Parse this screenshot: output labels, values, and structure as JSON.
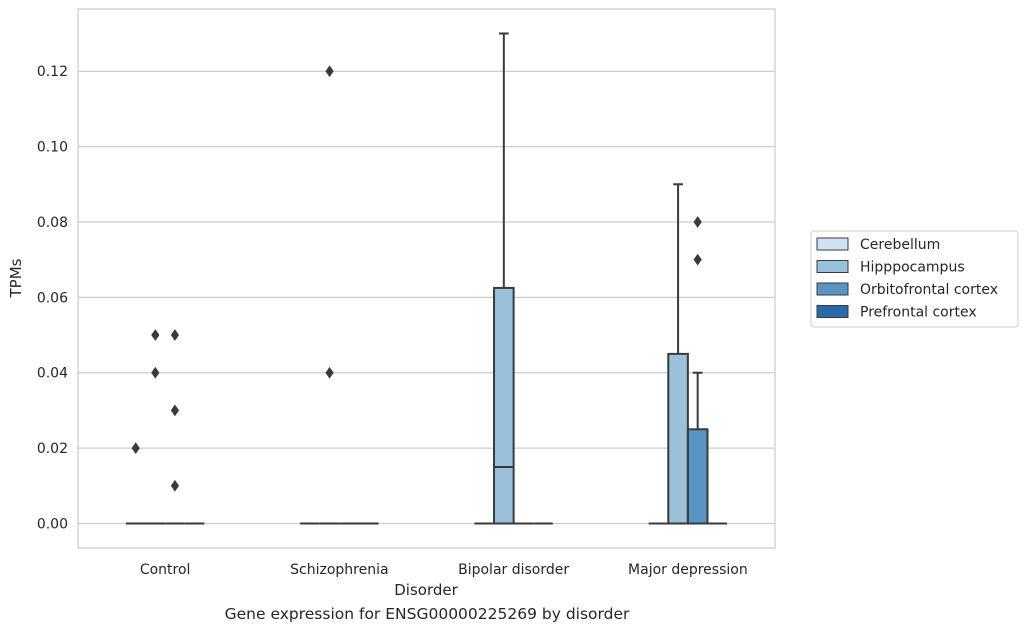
{
  "caption": "Gene expression for ENSG00000225269 by disorder",
  "chart_data": {
    "type": "box",
    "xlabel": "Disorder",
    "ylabel": "TPMs",
    "categories": [
      "Control",
      "Schizophrenia",
      "Bipolar disorder",
      "Major depression"
    ],
    "ylim": [
      -0.0065,
      0.1365
    ],
    "yticks": [
      0.0,
      0.02,
      0.04,
      0.06,
      0.08,
      0.1,
      0.12
    ],
    "ytick_labels": [
      "0.00",
      "0.02",
      "0.04",
      "0.06",
      "0.08",
      "0.10",
      "0.12"
    ],
    "grid": "horizontal",
    "legend_position": "right",
    "series": [
      {
        "name": "Cerebellum",
        "color": "#d0e1f2",
        "boxes": [
          {
            "category": "Control",
            "whislo": 0.0,
            "q1": 0.0,
            "med": 0.0,
            "q3": 0.0,
            "whishi": 0.0,
            "fliers": [
              0.02
            ]
          },
          {
            "category": "Schizophrenia",
            "whislo": 0.0,
            "q1": 0.0,
            "med": 0.0,
            "q3": 0.0,
            "whishi": 0.0,
            "fliers": []
          },
          {
            "category": "Bipolar disorder",
            "whislo": 0.0,
            "q1": 0.0,
            "med": 0.0,
            "q3": 0.0,
            "whishi": 0.0,
            "fliers": []
          },
          {
            "category": "Major depression",
            "whislo": 0.0,
            "q1": 0.0,
            "med": 0.0,
            "q3": 0.0,
            "whishi": 0.0,
            "fliers": []
          }
        ]
      },
      {
        "name": "Hipppocampus",
        "color": "#9ac1d9",
        "boxes": [
          {
            "category": "Control",
            "whislo": 0.0,
            "q1": 0.0,
            "med": 0.0,
            "q3": 0.0,
            "whishi": 0.0,
            "fliers": [
              0.04,
              0.05
            ]
          },
          {
            "category": "Schizophrenia",
            "whislo": 0.0,
            "q1": 0.0,
            "med": 0.0,
            "q3": 0.0,
            "whishi": 0.0,
            "fliers": [
              0.04,
              0.12
            ]
          },
          {
            "category": "Bipolar disorder",
            "whislo": 0.0,
            "q1": 0.0,
            "med": 0.015,
            "q3": 0.0625,
            "whishi": 0.13,
            "fliers": []
          },
          {
            "category": "Major depression",
            "whislo": 0.0,
            "q1": 0.0,
            "med": 0.0,
            "q3": 0.045,
            "whishi": 0.09,
            "fliers": []
          }
        ]
      },
      {
        "name": "Orbitofrontal cortex",
        "color": "#5a94c2",
        "boxes": [
          {
            "category": "Control",
            "whislo": 0.0,
            "q1": 0.0,
            "med": 0.0,
            "q3": 0.0,
            "whishi": 0.0,
            "fliers": [
              0.01,
              0.03,
              0.05
            ]
          },
          {
            "category": "Schizophrenia",
            "whislo": 0.0,
            "q1": 0.0,
            "med": 0.0,
            "q3": 0.0,
            "whishi": 0.0,
            "fliers": []
          },
          {
            "category": "Bipolar disorder",
            "whislo": 0.0,
            "q1": 0.0,
            "med": 0.0,
            "q3": 0.0,
            "whishi": 0.0,
            "fliers": []
          },
          {
            "category": "Major depression",
            "whislo": 0.0,
            "q1": 0.0,
            "med": 0.0,
            "q3": 0.025,
            "whishi": 0.04,
            "fliers": [
              0.07,
              0.08
            ]
          }
        ]
      },
      {
        "name": "Prefrontal cortex",
        "color": "#2b6aa8",
        "boxes": [
          {
            "category": "Control",
            "whislo": 0.0,
            "q1": 0.0,
            "med": 0.0,
            "q3": 0.0,
            "whishi": 0.0,
            "fliers": []
          },
          {
            "category": "Schizophrenia",
            "whislo": 0.0,
            "q1": 0.0,
            "med": 0.0,
            "q3": 0.0,
            "whishi": 0.0,
            "fliers": []
          },
          {
            "category": "Bipolar disorder",
            "whislo": 0.0,
            "q1": 0.0,
            "med": 0.0,
            "q3": 0.0,
            "whishi": 0.0,
            "fliers": []
          },
          {
            "category": "Major depression",
            "whislo": 0.0,
            "q1": 0.0,
            "med": 0.0,
            "q3": 0.0,
            "whishi": 0.0,
            "fliers": []
          }
        ]
      }
    ]
  }
}
